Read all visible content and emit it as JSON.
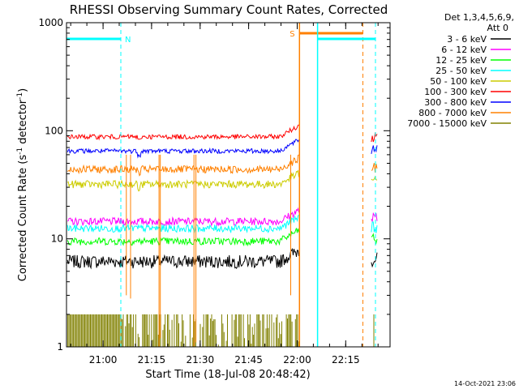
{
  "chart_data": {
    "type": "line",
    "title": "RHESSI Observing Summary Count Rates, Corrected",
    "ylabel_main": "Corrected Count Rate (s",
    "ylabel_sup1": "-1",
    "ylabel_mid": " detector",
    "ylabel_sup2": "-1",
    "ylabel_end": ")",
    "xlabel": "Start Time (18-Jul-08 20:48:42)",
    "footer": "14-Oct-2021 23:06",
    "y_scale": "log",
    "ylim": [
      1,
      1000
    ],
    "xlim_minutes": [
      0,
      100
    ],
    "yticks": [
      {
        "value": 1,
        "label": "1"
      },
      {
        "value": 10,
        "label": "10"
      },
      {
        "value": 100,
        "label": "100"
      },
      {
        "value": 1000,
        "label": "1000"
      }
    ],
    "xticks": [
      {
        "minute": 11.3,
        "label": "21:00"
      },
      {
        "minute": 26.3,
        "label": "21:15"
      },
      {
        "minute": 41.3,
        "label": "21:30"
      },
      {
        "minute": 56.3,
        "label": "21:45"
      },
      {
        "minute": 71.3,
        "label": "22:00"
      },
      {
        "minute": 86.3,
        "label": "22:15"
      }
    ],
    "legend_header": [
      "Det 1,3,4,5,6,9,",
      "Att 0"
    ],
    "legend_position": "right",
    "series": [
      {
        "name": "3 - 6 keV",
        "color": "#000000",
        "level": 6.2
      },
      {
        "name": "6 - 12 keV",
        "color": "#ff00ff",
        "level": 14.5
      },
      {
        "name": "12 - 25 keV",
        "color": "#00ff00",
        "level": 9.5
      },
      {
        "name": "25 - 50 keV",
        "color": "#00ffff",
        "level": 12.5
      },
      {
        "name": "50 - 100 keV",
        "color": "#cccc00",
        "level": 32
      },
      {
        "name": "100 - 300 keV",
        "color": "#ff0000",
        "level": 88
      },
      {
        "name": "300 - 800 keV",
        "color": "#0000ff",
        "level": 65
      },
      {
        "name": "800 - 7000 keV",
        "color": "#ff8000",
        "level": 44
      },
      {
        "name": "7000 - 15000 keV",
        "color": "#808000",
        "level": 1.4
      }
    ],
    "markers": [
      {
        "label": "N",
        "color": "#00ffff",
        "start_minute": 0,
        "end_minute": 16.8
      },
      {
        "label": "S",
        "color": "#ff8000",
        "start_minute": 72,
        "end_minute": 91.6
      },
      {
        "label": "",
        "color": "#00ffff",
        "start_minute": 77.6,
        "end_minute": 95.5
      }
    ],
    "data_gap_minutes": [
      72,
      94
    ],
    "end_segment_minutes": [
      94,
      96
    ]
  }
}
